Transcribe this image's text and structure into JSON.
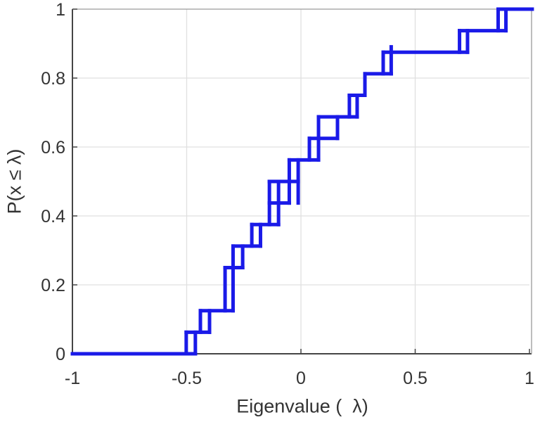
{
  "chart_data": {
    "type": "step",
    "title": "",
    "xlabel": "Eigenvalue (  λ)",
    "ylabel": "P(x ≤ λ)",
    "xlim": [
      -1,
      1
    ],
    "ylim": [
      0,
      1
    ],
    "xticks": [
      -1,
      -0.5,
      0,
      0.5,
      1
    ],
    "xtick_labels": [
      "-1",
      "-0.5",
      "0",
      "0.5",
      "1"
    ],
    "yticks": [
      0,
      0.2,
      0.4,
      0.6,
      0.8,
      1
    ],
    "ytick_labels": [
      "0",
      "0.2",
      "0.4",
      "0.6",
      "0.8",
      "1"
    ],
    "grid": true,
    "grid_x": [
      -0.5,
      0,
      0.5
    ],
    "grid_y": [
      0.2,
      0.4,
      0.6,
      0.8
    ],
    "n_samples": 16,
    "line_color": "#1a1ae8",
    "line_width": 5,
    "grid_color": "#e0e0e0",
    "axis_dark_color": "#454545",
    "axis_light_color": "#9a9a9a",
    "label_color": "#333333",
    "note": "Empirical CDF staircase; levels are sixteenths. risers=[lambda, level_from16, level_to16]; treads=[level16, lambda_start, lambda_end]",
    "risers": [
      [
        -0.502,
        0,
        1
      ],
      [
        -0.462,
        0,
        1
      ],
      [
        -0.44,
        1,
        2
      ],
      [
        -0.4,
        1,
        2
      ],
      [
        -0.332,
        2,
        4
      ],
      [
        -0.297,
        2,
        5
      ],
      [
        -0.255,
        4,
        5
      ],
      [
        -0.215,
        5,
        6
      ],
      [
        -0.177,
        5,
        6
      ],
      [
        -0.138,
        6,
        8
      ],
      [
        -0.098,
        6,
        8
      ],
      [
        -0.051,
        7,
        9
      ],
      [
        -0.012,
        7,
        9
      ],
      [
        0.037,
        9,
        10
      ],
      [
        0.077,
        9,
        11
      ],
      [
        0.16,
        10,
        11
      ],
      [
        0.212,
        11,
        12
      ],
      [
        0.246,
        11,
        12
      ],
      [
        0.28,
        12,
        13
      ],
      [
        0.36,
        13,
        14
      ],
      [
        0.395,
        13,
        14.25
      ],
      [
        0.694,
        14,
        15
      ],
      [
        0.729,
        14,
        15
      ],
      [
        0.863,
        15,
        16
      ],
      [
        0.897,
        15,
        16
      ]
    ],
    "treads": [
      [
        0,
        -1.0,
        -0.462
      ],
      [
        1,
        -0.502,
        -0.4
      ],
      [
        2,
        -0.44,
        -0.297
      ],
      [
        4,
        -0.332,
        -0.255
      ],
      [
        5,
        -0.297,
        -0.177
      ],
      [
        6,
        -0.215,
        -0.098
      ],
      [
        7,
        -0.138,
        -0.051
      ],
      [
        8,
        -0.138,
        -0.012
      ],
      [
        9,
        -0.051,
        0.077
      ],
      [
        10,
        0.037,
        0.16
      ],
      [
        11,
        0.077,
        0.246
      ],
      [
        12,
        0.212,
        0.28
      ],
      [
        13,
        0.28,
        0.395
      ],
      [
        14,
        0.36,
        0.729
      ],
      [
        15,
        0.694,
        0.897
      ],
      [
        16,
        0.863,
        1.012
      ]
    ]
  }
}
